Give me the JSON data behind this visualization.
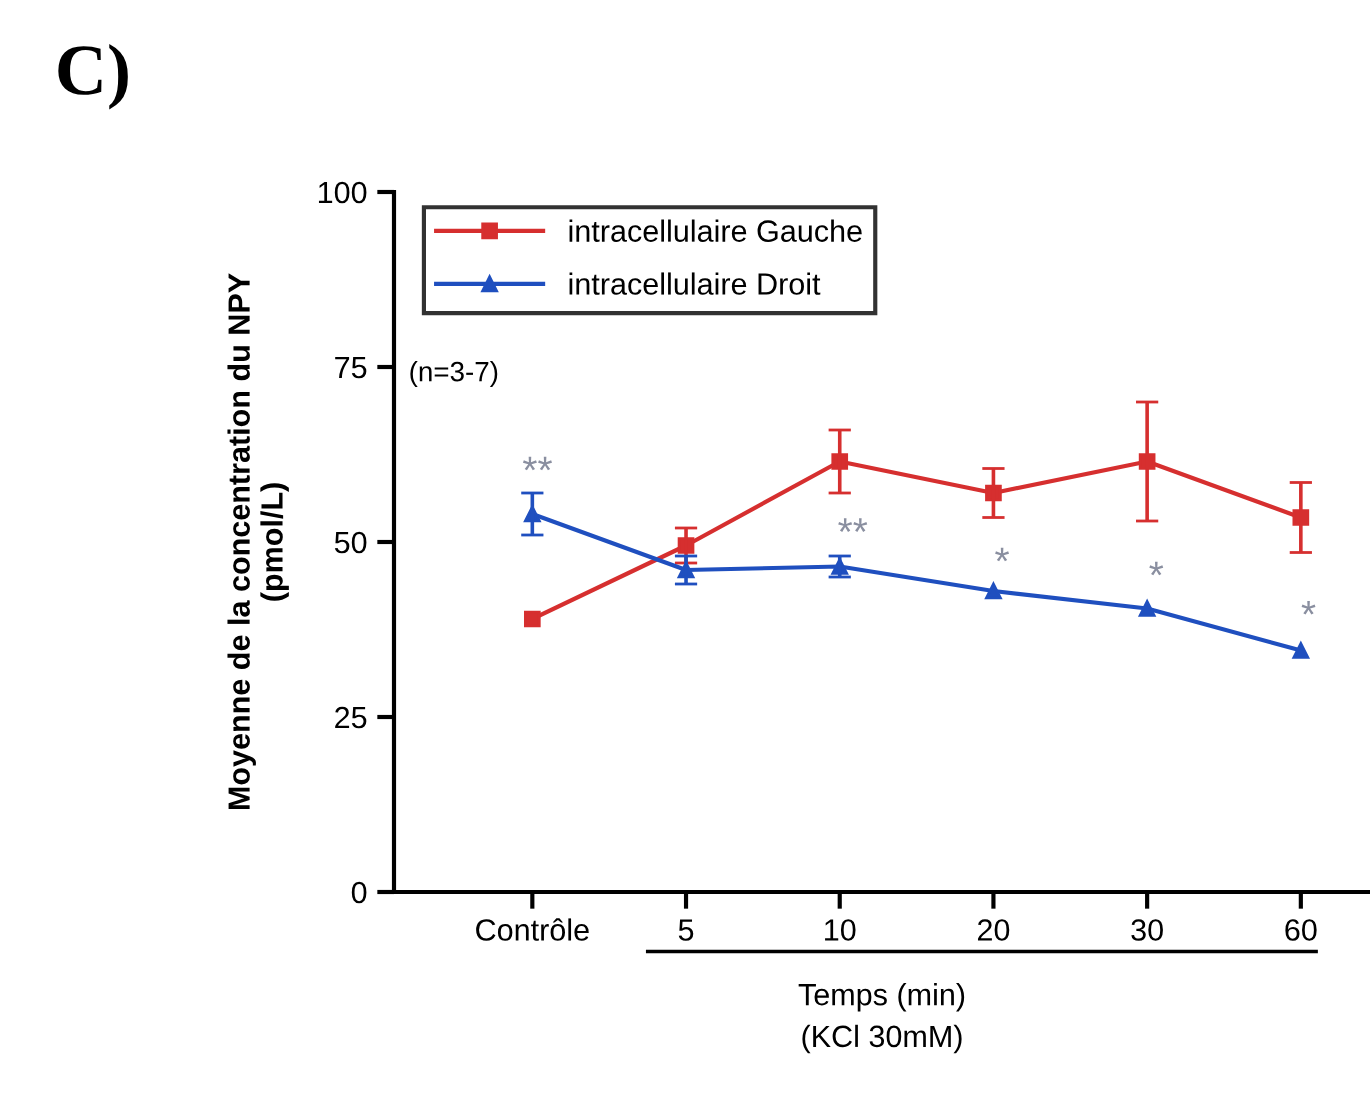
{
  "chart_data": {
    "type": "line",
    "title": "C)",
    "ylabel": "Moyenne de la concentration du NPY\n(pmol/L)",
    "xlabel": "Temps (min)\n(KCl 30mM)",
    "categories": [
      "Contrôle",
      "5",
      "10",
      "20",
      "30",
      "60"
    ],
    "series": [
      {
        "name": "intracellulaire Gauche",
        "color": "#d62f2f",
        "marker": "square",
        "values": [
          39,
          49.5,
          61.5,
          57,
          61.5,
          53.5
        ],
        "errors": [
          null,
          2.5,
          4.5,
          3.5,
          8.5,
          5
        ]
      },
      {
        "name": "intracellulaire Droit",
        "color": "#1f4fbf",
        "marker": "triangle",
        "values": [
          54,
          46,
          46.5,
          43,
          40.5,
          34.5
        ],
        "errors": [
          3,
          2,
          1.5,
          null,
          null,
          null
        ]
      }
    ],
    "ylim": [
      0,
      100
    ],
    "yticks": [
      0,
      25,
      50,
      75,
      100
    ],
    "grid": false,
    "legend": "top left",
    "line_style": "solid",
    "annotations": [
      "(n=3-7)",
      "**",
      "**",
      "*",
      "*",
      "*"
    ]
  }
}
